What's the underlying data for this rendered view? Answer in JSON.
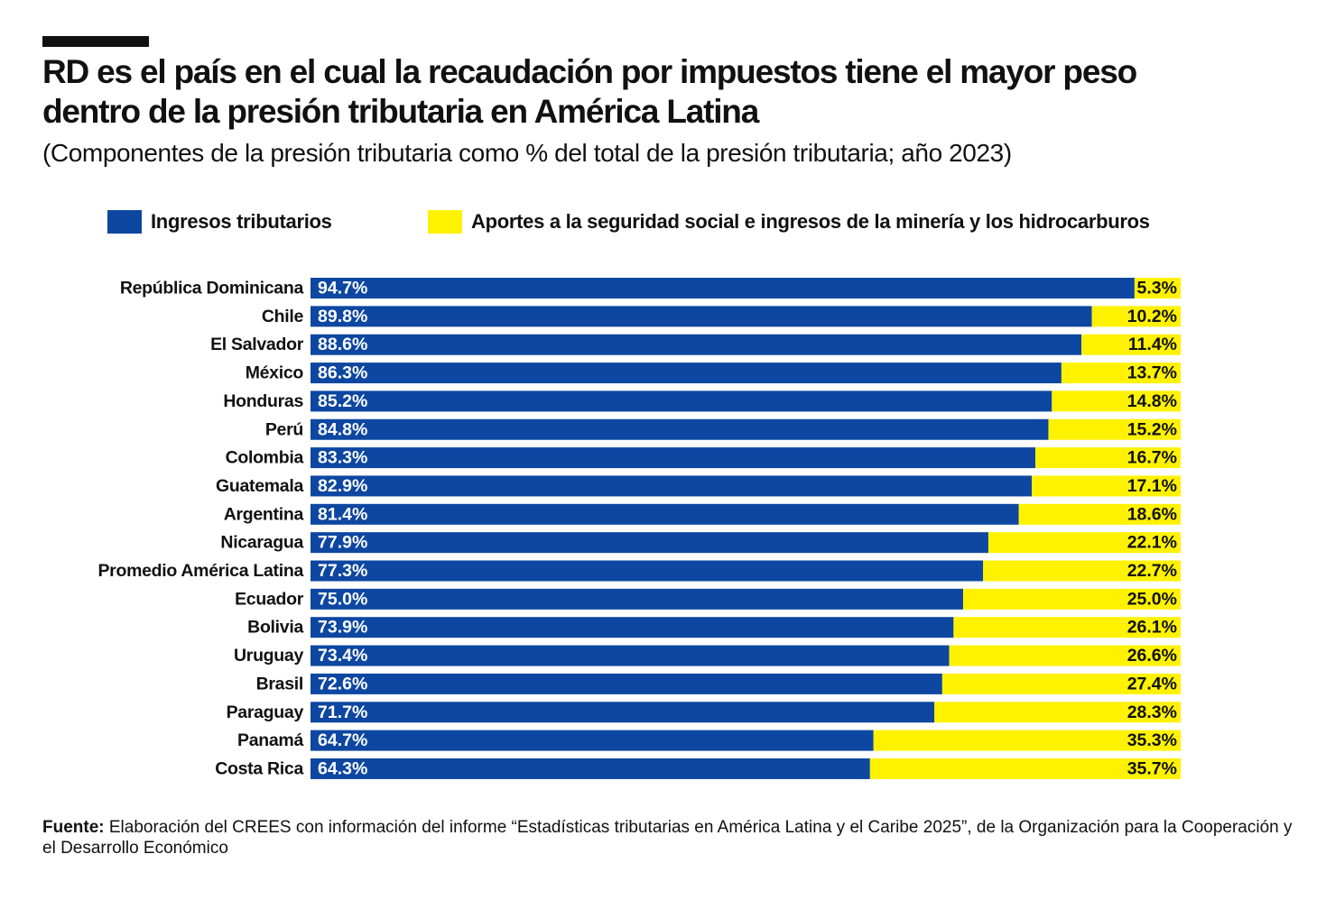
{
  "colors": {
    "blue": "#0d47a1",
    "yellow": "#fff200",
    "text": "#111111"
  },
  "chart_data": {
    "type": "bar",
    "orientation": "horizontal",
    "stacked": true,
    "title": "RD es el país en el cual la recaudación por impuestos tiene el mayor peso dentro de la presión tributaria en América Latina",
    "subtitle": "(Componentes de la presión tributaria como % del total de la presión tributaria; año 2023)",
    "legend": [
      "Ingresos tributarios",
      "Aportes a la seguridad social e ingresos de la minería y los hidrocarburos"
    ],
    "categories": [
      "República Dominicana",
      "Chile",
      "El Salvador",
      "México",
      "Honduras",
      "Perú",
      "Colombia",
      "Guatemala",
      "Argentina",
      "Nicaragua",
      "Promedio América Latina",
      "Ecuador",
      "Bolivia",
      "Uruguay",
      "Brasil",
      "Paraguay",
      "Panamá",
      "Costa Rica"
    ],
    "series": [
      {
        "name": "Ingresos tributarios",
        "values": [
          94.7,
          89.8,
          88.6,
          86.3,
          85.2,
          84.8,
          83.3,
          82.9,
          81.4,
          77.9,
          77.3,
          75.0,
          73.9,
          73.4,
          72.6,
          71.7,
          64.7,
          64.3
        ]
      },
      {
        "name": "Aportes a la seguridad social e ingresos de la minería y los hidrocarburos",
        "values": [
          5.3,
          10.2,
          11.4,
          13.7,
          14.8,
          15.2,
          16.7,
          17.1,
          18.6,
          22.1,
          22.7,
          25.0,
          26.1,
          26.6,
          27.4,
          28.3,
          35.3,
          35.7
        ]
      }
    ],
    "labels_blue": [
      "94.7%",
      "89.8%",
      "88.6%",
      "86.3%",
      "85.2%",
      "84.8%",
      "83.3%",
      "82.9%",
      "81.4%",
      "77.9%",
      "77.3%",
      "75.0%",
      "73.9%",
      "73.4%",
      "72.6%",
      "71.7%",
      "64.7%",
      "64.3%"
    ],
    "labels_yellow": [
      "5.3%",
      "10.2%",
      "11.4%",
      "13.7%",
      "14.8%",
      "15.2%",
      "16.7%",
      "17.1%",
      "18.6%",
      "22.1%",
      "22.7%",
      "25.0%",
      "26.1%",
      "26.6%",
      "27.4%",
      "28.3%",
      "35.3%",
      "35.7%"
    ],
    "xlim": [
      0,
      100
    ],
    "grid": false
  },
  "source": {
    "label": "Fuente:",
    "text": " Elaboración del CREES con información del informe “Estadísticas tributarias en América Latina y el Caribe 2025”, de la Organización para la Cooperación y el Desarrollo Económico"
  }
}
